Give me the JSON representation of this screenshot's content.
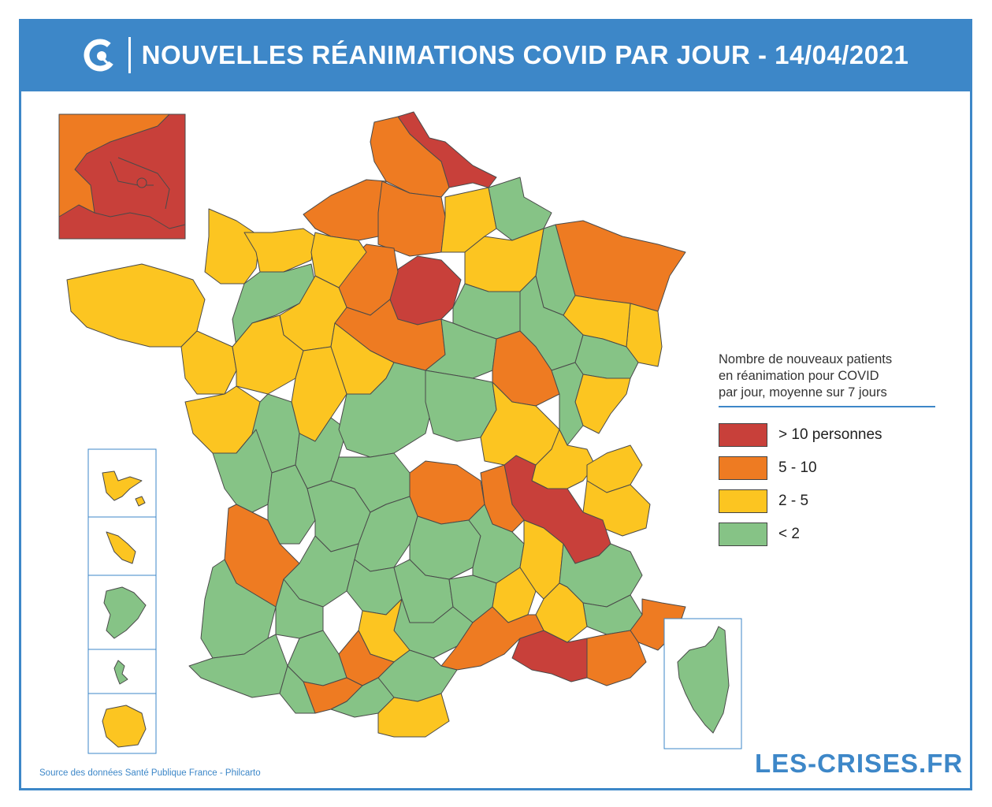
{
  "header": {
    "title": "NOUVELLES RÉANIMATIONS COVID PAR JOUR - 14/04/2021",
    "logo_icon": "crises-logo-icon"
  },
  "legend": {
    "title_lines": [
      "Nombre de nouveaux patients",
      "en réanimation pour COVID",
      "par jour, moyenne sur 7 jours"
    ],
    "items": [
      {
        "label": "> 10 personnes",
        "color": "#c8403a"
      },
      {
        "label": "5 - 10",
        "color": "#ee7b22"
      },
      {
        "label": "2 - 5",
        "color": "#fcc521"
      },
      {
        "label": "< 2",
        "color": "#86c386"
      }
    ]
  },
  "footer": {
    "source": "Source des données Santé Publique France - Philcarto",
    "brand": "LES-CRISES.FR"
  },
  "colors": {
    "frame": "#3d87c8",
    "red": "#c8403a",
    "orange": "#ee7b22",
    "yellow": "#fcc521",
    "green": "#86c386"
  }
}
